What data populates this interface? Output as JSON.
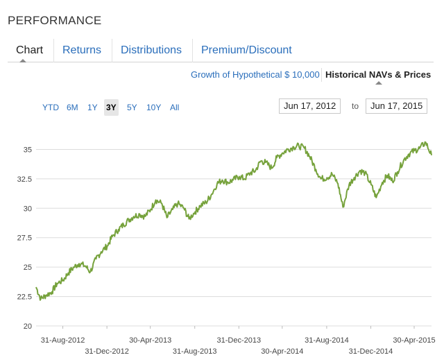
{
  "section_title": "PERFORMANCE",
  "tabs": [
    "Chart",
    "Returns",
    "Distributions",
    "Premium/Discount"
  ],
  "subtabs": [
    "Growth of Hypothetical $ 10,000",
    "Historical NAVs & Prices"
  ],
  "ranges": [
    "YTD",
    "6M",
    "1Y",
    "3Y",
    "5Y",
    "10Y",
    "All"
  ],
  "active_range": "3Y",
  "date_from": "Jun 17, 2012",
  "date_to_label": "to",
  "date_to": "Jun 17, 2015",
  "colors": {
    "line": "#76a23c",
    "link": "#2a6ebb",
    "grid": "#dcdcdc"
  },
  "chart_data": {
    "type": "line",
    "title": "",
    "xlabel": "",
    "ylabel": "",
    "ylim": [
      20,
      36.5
    ],
    "yticks": [
      "35",
      "32.5",
      "30",
      "27.5",
      "25",
      "22.5",
      "20"
    ],
    "xticks_top": [
      "31-Aug-2012",
      "30-Apr-2013",
      "31-Dec-2013",
      "31-Aug-2014",
      "30-Apr-2015"
    ],
    "xticks_bottom": [
      "31-Dec-2012",
      "31-Aug-2013",
      "30-Apr-2014",
      "31-Dec-2014"
    ],
    "grid": true,
    "series": [
      {
        "name": "",
        "x": [
          "2012-06-18",
          "2012-07-01",
          "2012-07-15",
          "2012-08-01",
          "2012-08-15",
          "2012-09-01",
          "2012-09-15",
          "2012-10-01",
          "2012-10-15",
          "2012-11-01",
          "2012-11-15",
          "2012-12-01",
          "2012-12-15",
          "2013-01-01",
          "2013-01-15",
          "2013-02-01",
          "2013-02-15",
          "2013-03-01",
          "2013-03-15",
          "2013-04-01",
          "2013-04-15",
          "2013-05-01",
          "2013-05-15",
          "2013-06-01",
          "2013-06-15",
          "2013-07-01",
          "2013-07-15",
          "2013-08-01",
          "2013-08-15",
          "2013-09-01",
          "2013-09-15",
          "2013-10-01",
          "2013-10-15",
          "2013-11-01",
          "2013-11-15",
          "2013-12-01",
          "2013-12-15",
          "2014-01-01",
          "2014-01-15",
          "2014-02-01",
          "2014-02-15",
          "2014-03-01",
          "2014-03-15",
          "2014-04-01",
          "2014-04-15",
          "2014-05-01",
          "2014-05-15",
          "2014-06-01",
          "2014-06-15",
          "2014-07-01",
          "2014-07-15",
          "2014-08-01",
          "2014-08-15",
          "2014-09-01",
          "2014-09-15",
          "2014-10-01",
          "2014-10-15",
          "2014-11-01",
          "2014-11-15",
          "2014-12-01",
          "2014-12-15",
          "2015-01-01",
          "2015-01-15",
          "2015-02-01",
          "2015-02-15",
          "2015-03-01",
          "2015-03-15",
          "2015-04-01",
          "2015-04-15",
          "2015-05-01",
          "2015-05-15",
          "2015-06-01",
          "2015-06-17"
        ],
        "values": [
          23.3,
          22.3,
          22.6,
          22.9,
          23.6,
          23.9,
          24.5,
          25.0,
          25.3,
          25.1,
          24.6,
          25.7,
          26.3,
          26.8,
          27.6,
          28.2,
          28.6,
          29.0,
          29.3,
          29.5,
          29.3,
          29.9,
          30.7,
          30.4,
          29.2,
          29.9,
          30.4,
          30.0,
          29.1,
          29.7,
          30.2,
          30.5,
          31.1,
          32.1,
          32.4,
          32.2,
          32.4,
          32.7,
          32.5,
          33.0,
          33.2,
          34.0,
          33.9,
          33.4,
          34.3,
          34.7,
          35.0,
          35.2,
          35.3,
          35.1,
          34.4,
          33.3,
          32.5,
          32.6,
          32.9,
          32.1,
          30.1,
          32.0,
          32.6,
          33.2,
          33.0,
          32.0,
          30.9,
          32.2,
          32.8,
          32.3,
          33.1,
          34.1,
          34.6,
          34.9,
          35.1,
          35.6,
          34.5
        ]
      }
    ]
  }
}
